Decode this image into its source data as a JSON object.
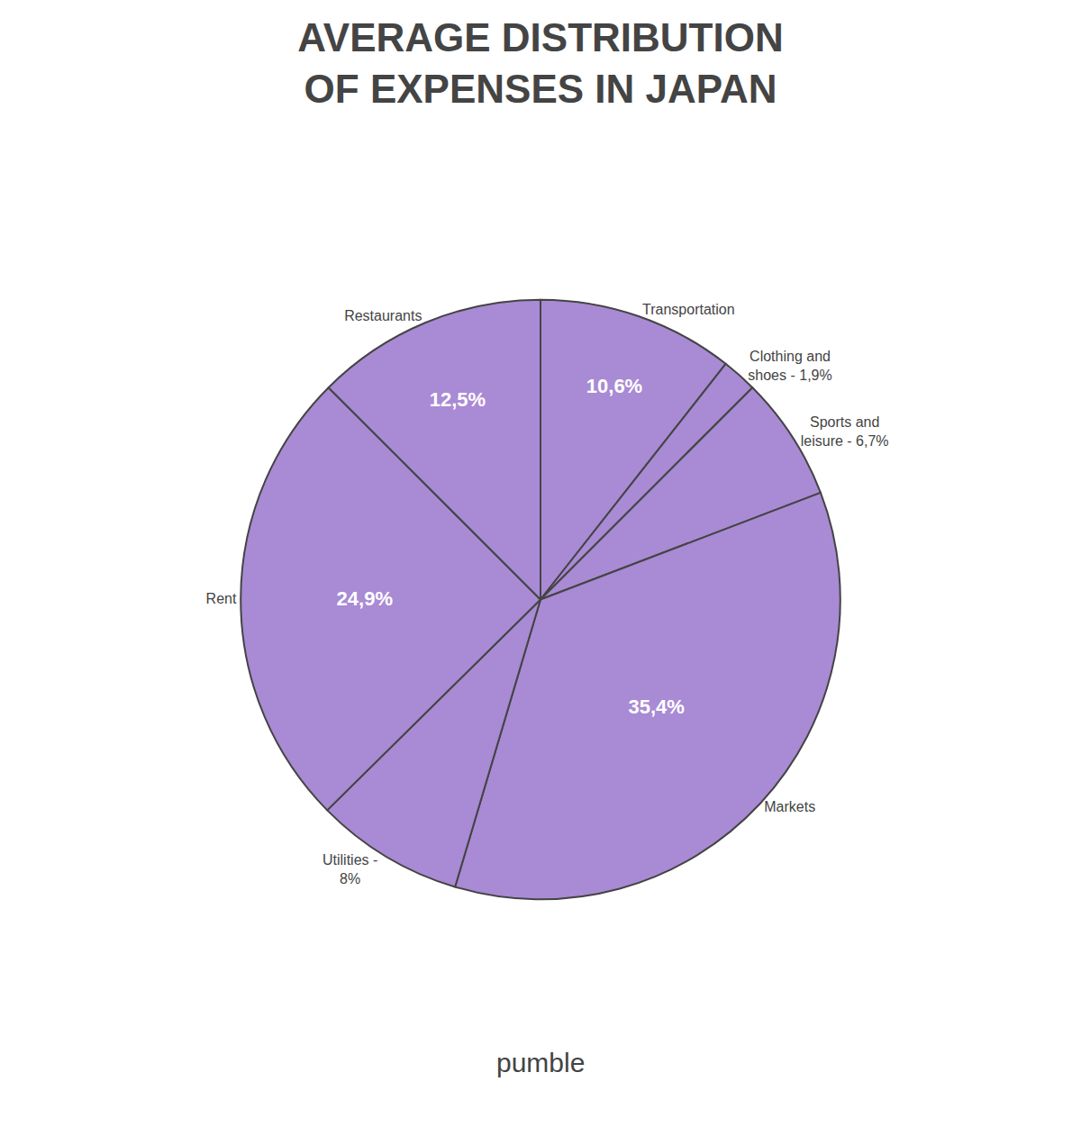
{
  "chart_data": {
    "type": "pie",
    "title": "AVERAGE DISTRIBUTION\nOF EXPENSES IN JAPAN",
    "categories": [
      "Transportation",
      "Clothing and\nshoes - 1,9%",
      "Sports and\nleisure - 6,7%",
      "Markets",
      "Utilities -\n8%",
      "Rent",
      "Restaurants"
    ],
    "values": [
      10.6,
      1.9,
      6.7,
      35.4,
      8.0,
      24.9,
      12.5
    ],
    "value_labels": [
      "10,6%",
      null,
      null,
      "35,4%",
      null,
      "24,9%",
      "12,5%"
    ],
    "data_labels": true,
    "color": "#a98ad4",
    "annotations": [
      "pumble"
    ]
  }
}
